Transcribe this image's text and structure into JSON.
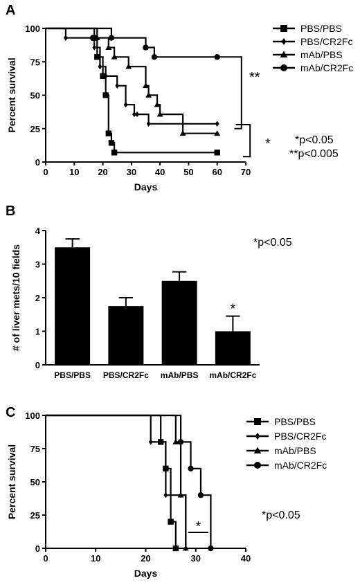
{
  "figure": {
    "colors": {
      "ink": "#000000",
      "background": "#ffffff"
    }
  },
  "chart_data": [
    {
      "panel_label": "A",
      "type": "line",
      "subtype": "kaplan-meier",
      "title": "",
      "xlabel": "Days",
      "ylabel": "Percent survival",
      "xlim": [
        0,
        70
      ],
      "ylim": [
        0,
        100
      ],
      "x_ticks": [
        "0",
        "10",
        "20",
        "30",
        "40",
        "50",
        "60",
        "70"
      ],
      "y_ticks": [
        "0",
        "25",
        "50",
        "75",
        "100"
      ],
      "grid": false,
      "legend_position": "top-right",
      "series": [
        {
          "name": "PBS/PBS",
          "marker": "square",
          "steps": [
            [
              0,
              100
            ],
            [
              17,
              92.9
            ],
            [
              18,
              78.6
            ],
            [
              20,
              64.3
            ],
            [
              21,
              50
            ],
            [
              22,
              21.4
            ],
            [
              23,
              14.3
            ],
            [
              24,
              7.1
            ],
            [
              60,
              7.1
            ]
          ]
        },
        {
          "name": "PBS/CR2Fc",
          "marker": "diamond",
          "steps": [
            [
              0,
              100
            ],
            [
              7,
              92.9
            ],
            [
              16,
              92.9
            ],
            [
              17,
              85.7
            ],
            [
              19,
              71.4
            ],
            [
              21,
              64.3
            ],
            [
              25,
              57.1
            ],
            [
              28,
              42.9
            ],
            [
              31,
              35.7
            ],
            [
              32,
              35.7
            ],
            [
              36,
              28.6
            ],
            [
              60,
              28.6
            ]
          ]
        },
        {
          "name": "mAb/PBS",
          "marker": "triangle",
          "steps": [
            [
              0,
              100
            ],
            [
              18,
              92.9
            ],
            [
              22,
              85.7
            ],
            [
              24,
              78.6
            ],
            [
              29,
              71.4
            ],
            [
              35,
              57.1
            ],
            [
              36,
              50
            ],
            [
              39,
              42.9
            ],
            [
              40,
              35.7
            ],
            [
              48,
              21.4
            ],
            [
              60,
              21.4
            ]
          ]
        },
        {
          "name": "mAb/CR2Fc",
          "marker": "circle",
          "steps": [
            [
              0,
              100
            ],
            [
              23,
              92.9
            ],
            [
              35,
              85.7
            ],
            [
              38,
              78.6
            ],
            [
              60,
              78.6
            ]
          ]
        }
      ],
      "annotations": [
        "**",
        "*",
        "*p<0.05",
        "**p<0.005"
      ]
    },
    {
      "panel_label": "B",
      "type": "bar",
      "title": "",
      "xlabel": "",
      "ylabel": "# of liver mets/10 fields",
      "ylim": [
        0,
        4
      ],
      "y_ticks": [
        "0",
        "1",
        "2",
        "3",
        "4"
      ],
      "categories": [
        "PBS/PBS",
        "PBS/CR2Fc",
        "mAb/PBS",
        "mAb/CR2Fc"
      ],
      "values": [
        3.5,
        1.75,
        2.5,
        1.0
      ],
      "errors": [
        0.25,
        0.25,
        0.27,
        0.45
      ],
      "bar_markers": [
        "",
        "",
        "",
        "*"
      ],
      "grid": false,
      "annotations": [
        "*p<0.05"
      ]
    },
    {
      "panel_label": "C",
      "type": "line",
      "subtype": "kaplan-meier",
      "title": "",
      "xlabel": "Days",
      "ylabel": "Percent survival",
      "xlim": [
        0,
        40
      ],
      "ylim": [
        0,
        100
      ],
      "x_ticks": [
        "0",
        "10",
        "20",
        "30",
        "40"
      ],
      "y_ticks": [
        "0",
        "25",
        "50",
        "75",
        "100"
      ],
      "grid": false,
      "legend_position": "top-right",
      "series": [
        {
          "name": "PBS/PBS",
          "marker": "square",
          "steps": [
            [
              0,
              100
            ],
            [
              23,
              80
            ],
            [
              24,
              60
            ],
            [
              25,
              20
            ],
            [
              26,
              0
            ]
          ]
        },
        {
          "name": "PBS/CR2Fc",
          "marker": "diamond",
          "steps": [
            [
              0,
              100
            ],
            [
              21,
              80
            ],
            [
              24,
              40
            ],
            [
              27,
              40
            ],
            [
              28,
              0
            ]
          ]
        },
        {
          "name": "mAb/PBS",
          "marker": "triangle",
          "steps": [
            [
              0,
              100
            ],
            [
              26,
              80
            ],
            [
              27,
              40
            ],
            [
              28,
              0
            ]
          ]
        },
        {
          "name": "mAb/CR2Fc",
          "marker": "circle",
          "steps": [
            [
              0,
              100
            ],
            [
              27,
              80
            ],
            [
              29,
              60
            ],
            [
              31,
              40
            ],
            [
              33,
              0
            ]
          ]
        }
      ],
      "annotations": [
        "*",
        "*p<0.05"
      ]
    }
  ]
}
